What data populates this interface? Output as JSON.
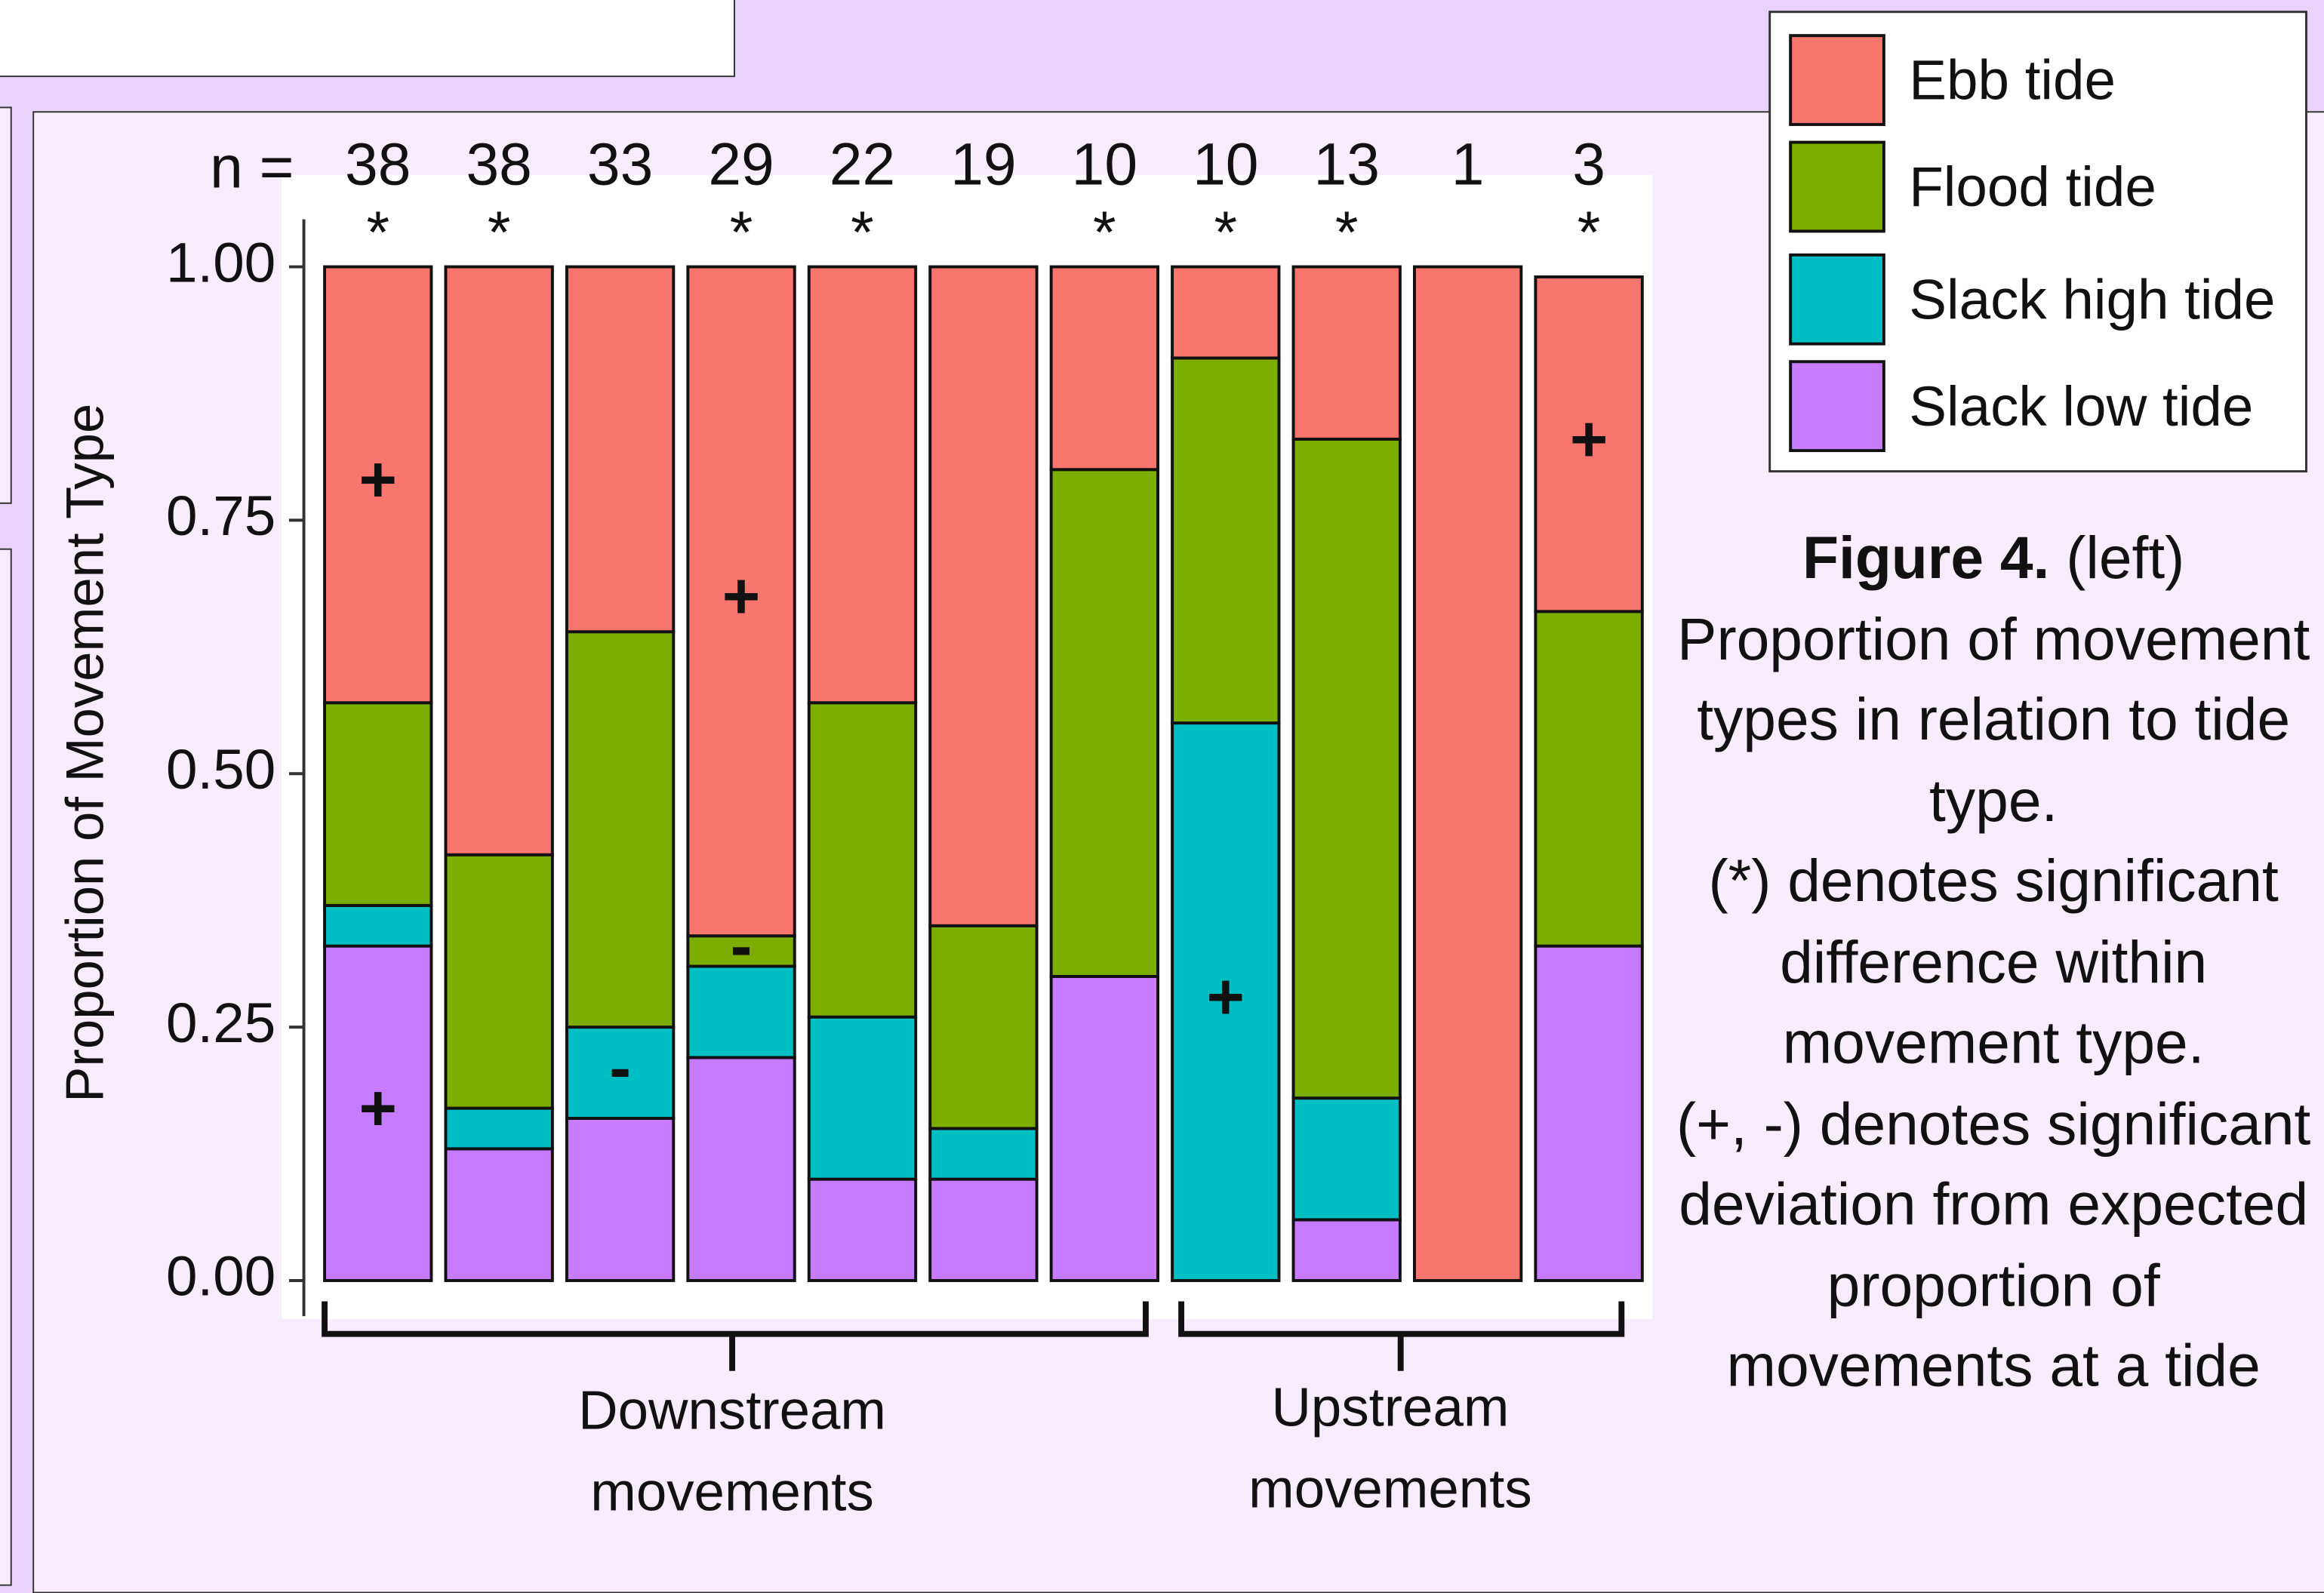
{
  "chart_data": {
    "type": "stacked-bar",
    "y_label": "Proportion of Movement Type",
    "n_label": "n =",
    "counts": [
      38,
      38,
      33,
      29,
      22,
      19,
      10,
      10,
      13,
      1,
      3
    ],
    "significance": [
      "*",
      "*",
      null,
      "*",
      "*",
      null,
      "*",
      "*",
      "*",
      null,
      "*"
    ],
    "groups": [
      "Downstream movements",
      "Upstream movements"
    ],
    "ylim": [
      0,
      1
    ],
    "yticks": [
      {
        "value": 0,
        "label": "0.00"
      },
      {
        "value": 0.25,
        "label": "0.25"
      },
      {
        "value": 0.5,
        "label": "0.50"
      },
      {
        "value": 0.75,
        "label": "0.75"
      },
      {
        "value": 1,
        "label": "1.00"
      }
    ],
    "series": [
      {
        "name": "Ebb tide",
        "color": "#f8766d",
        "values": [
          0.43,
          0.58,
          0.36,
          0.66,
          0.43,
          0.65,
          0.2,
          0.09,
          0.17,
          1,
          0.33
        ],
        "markers": [
          "+",
          null,
          null,
          "+",
          null,
          null,
          null,
          null,
          null,
          null,
          "+"
        ]
      },
      {
        "name": "Flood tide",
        "color": "#7cae00",
        "values": [
          0.2,
          0.25,
          0.39,
          0.03,
          0.31,
          0.2,
          0.5,
          0.36,
          0.65,
          0,
          0.33
        ],
        "markers": [
          null,
          null,
          null,
          "-",
          null,
          null,
          null,
          null,
          null,
          null,
          null
        ]
      },
      {
        "name": "Slack high tide",
        "color": "#00bfc4",
        "values": [
          0.04,
          0.04,
          0.09,
          0.09,
          0.16,
          0.05,
          0,
          0.55,
          0.12,
          0,
          0
        ],
        "markers": [
          null,
          null,
          "-",
          null,
          null,
          null,
          null,
          "+",
          null,
          null,
          null
        ]
      },
      {
        "name": "Slack low tide",
        "color": "#c77cff",
        "values": [
          0.33,
          0.13,
          0.16,
          0.22,
          0.1,
          0.1,
          0.3,
          0,
          0.06,
          0,
          0.33
        ],
        "markers": [
          "+",
          null,
          null,
          null,
          null,
          null,
          null,
          null,
          null,
          null,
          null
        ]
      }
    ]
  },
  "caption": {
    "title": "Figure 4.",
    "paragraphs": [
      "(left) Proportion of movement types in relation to tide type.",
      "(*) denotes significant difference within movement type.",
      "(+, -) denotes significant deviation from expected proportion of movements at a tide"
    ]
  }
}
